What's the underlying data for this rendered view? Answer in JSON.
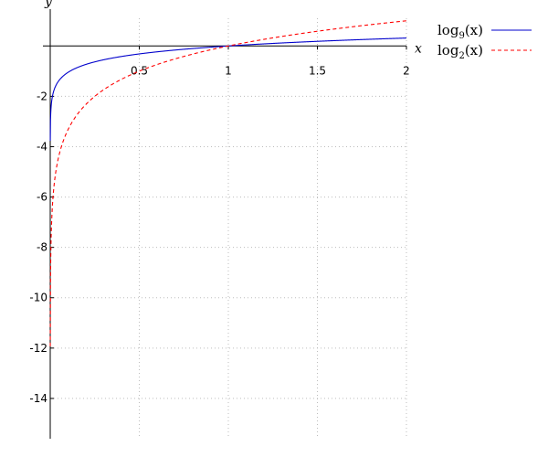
{
  "chart_data": {
    "type": "line",
    "title": "",
    "xlabel": "x",
    "ylabel": "y",
    "xlim": [
      0,
      2
    ],
    "ylim": [
      -15.6,
      1.1
    ],
    "grid": true,
    "legend_placement": "top-right",
    "x_ticks": [
      {
        "value": 0.5,
        "label": "0.5"
      },
      {
        "value": 1,
        "label": "1"
      },
      {
        "value": 1.5,
        "label": "1.5"
      },
      {
        "value": 2,
        "label": "2"
      }
    ],
    "y_ticks": [
      {
        "value": -2,
        "label": "-2"
      },
      {
        "value": -4,
        "label": "-4"
      },
      {
        "value": -6,
        "label": "-6"
      },
      {
        "value": -8,
        "label": "-8"
      },
      {
        "value": -10,
        "label": "-10"
      },
      {
        "value": -12,
        "label": "-12"
      },
      {
        "value": -14,
        "label": "-14"
      }
    ],
    "series": [
      {
        "name": "log9(x)",
        "legend_base": "log",
        "legend_sub": "9",
        "legend_arg": "(x)",
        "base": 9,
        "color": "#0000cc",
        "style": "solid",
        "x": [
          0.001,
          0.01,
          0.05,
          0.1,
          0.25,
          0.5,
          0.75,
          1,
          1.25,
          1.5,
          1.75,
          2
        ],
        "y": [
          -3.14,
          -2.1,
          -1.36,
          -1.05,
          -0.63,
          -0.32,
          -0.13,
          0,
          0.1,
          0.18,
          0.25,
          0.32
        ]
      },
      {
        "name": "log2(x)",
        "legend_base": "log",
        "legend_sub": "2",
        "legend_arg": "(x)",
        "base": 2,
        "color": "#ff0000",
        "style": "dashed",
        "x": [
          0.0001,
          0.001,
          0.01,
          0.05,
          0.1,
          0.25,
          0.5,
          0.75,
          1,
          1.25,
          1.5,
          1.75,
          2
        ],
        "y": [
          -13.29,
          -9.97,
          -6.64,
          -4.32,
          -3.32,
          -2.0,
          -1.0,
          -0.42,
          0,
          0.32,
          0.58,
          0.81,
          1.0
        ]
      }
    ]
  }
}
